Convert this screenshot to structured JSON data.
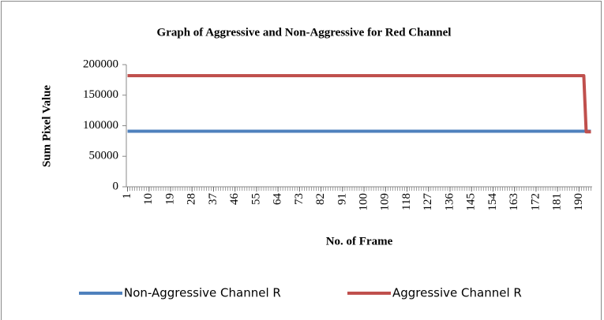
{
  "chart_data": {
    "type": "line",
    "title": "Graph of Aggressive and Non-Aggressive for Red Channel",
    "x_label": "No. of Frame",
    "y_label": "Sum Pixel Value",
    "x": [
      1,
      2,
      3,
      4,
      5,
      6,
      7,
      8,
      9,
      10,
      11,
      12,
      13,
      14,
      15,
      16,
      17,
      18,
      19,
      20,
      21,
      22,
      23,
      24,
      25,
      26,
      27,
      28,
      29,
      30,
      31,
      32,
      33,
      34,
      35,
      36,
      37,
      38,
      39,
      40,
      41,
      42,
      43,
      44,
      45,
      46,
      47,
      48,
      49,
      50,
      51,
      52,
      53,
      54,
      55,
      56,
      57,
      58,
      59,
      60,
      61,
      62,
      63,
      64,
      65,
      66,
      67,
      68,
      69,
      70,
      71,
      72,
      73,
      74,
      75,
      76,
      77,
      78,
      79,
      80,
      81,
      82,
      83,
      84,
      85,
      86,
      87,
      88,
      89,
      90,
      91,
      92,
      93,
      94,
      95,
      96,
      97,
      98,
      99,
      100,
      101,
      102,
      103,
      104,
      105,
      106,
      107,
      108,
      109,
      110,
      111,
      112,
      113,
      114,
      115,
      116,
      117,
      118,
      119,
      120,
      121,
      122,
      123,
      124,
      125,
      126,
      127,
      128,
      129,
      130,
      131,
      132,
      133,
      134,
      135,
      136,
      137,
      138,
      139,
      140,
      141,
      142,
      143,
      144,
      145,
      146,
      147,
      148,
      149,
      150,
      151,
      152,
      153,
      154,
      155,
      156,
      157,
      158,
      159,
      160,
      161,
      162,
      163,
      164,
      165,
      166,
      167,
      168,
      169,
      170,
      171,
      172,
      173,
      174,
      175,
      176,
      177,
      178,
      179,
      180,
      181,
      182,
      183,
      184,
      185,
      186,
      187,
      188,
      189,
      190,
      191,
      192,
      193,
      194,
      195
    ],
    "xlim": [
      0.5,
      195.5
    ],
    "xticks": [
      1,
      10,
      19,
      28,
      37,
      46,
      55,
      64,
      73,
      82,
      91,
      100,
      109,
      118,
      127,
      136,
      145,
      154,
      163,
      172,
      181,
      190
    ],
    "ylim": [
      0,
      200000
    ],
    "yticks": [
      0,
      50000,
      100000,
      150000,
      200000
    ],
    "legend": "bottom",
    "series": [
      {
        "name": "Non-Aggressive Channel R",
        "color": "#4f81bd",
        "values": [
          91000,
          91000,
          91000,
          91000,
          91000,
          91000,
          91000,
          91000,
          91000,
          91000,
          91000,
          91000,
          91000,
          91000,
          91000,
          91000,
          91000,
          91000,
          91000,
          91000,
          91000,
          91000,
          91000,
          91000,
          91000,
          91000,
          91000,
          91000,
          91000,
          91000,
          91000,
          91000,
          91000,
          91000,
          91000,
          91000,
          91000,
          91000,
          91000,
          91000,
          91000,
          91000,
          91000,
          91000,
          91000,
          91000,
          91000,
          91000,
          91000,
          91000,
          91000,
          91000,
          91000,
          91000,
          91000,
          91000,
          91000,
          91000,
          91000,
          91000,
          91000,
          91000,
          91000,
          91000,
          91000,
          91000,
          91000,
          91000,
          91000,
          91000,
          91000,
          91000,
          91000,
          91000,
          91000,
          91000,
          91000,
          91000,
          91000,
          91000,
          91000,
          91000,
          91000,
          91000,
          91000,
          91000,
          91000,
          91000,
          91000,
          91000,
          91000,
          91000,
          91000,
          91000,
          91000,
          91000,
          91000,
          91000,
          91000,
          91000,
          91000,
          91000,
          91000,
          91000,
          91000,
          91000,
          91000,
          91000,
          91000,
          91000,
          91000,
          91000,
          91000,
          91000,
          91000,
          91000,
          91000,
          91000,
          91000,
          91000,
          91000,
          91000,
          91000,
          91000,
          91000,
          91000,
          91000,
          91000,
          91000,
          91000,
          91000,
          91000,
          91000,
          91000,
          91000,
          91000,
          91000,
          91000,
          91000,
          91000,
          91000,
          91000,
          91000,
          91000,
          91000,
          91000,
          91000,
          91000,
          91000,
          91000,
          91000,
          91000,
          91000,
          91000,
          91000,
          91000,
          91000,
          91000,
          91000,
          91000,
          91000,
          91000,
          91000,
          91000,
          91000,
          91000,
          91000,
          91000,
          91000,
          91000,
          91000,
          91000,
          91000,
          91000,
          91000,
          91000,
          91000,
          91000,
          91000,
          91000,
          91000,
          91000,
          91000,
          91000,
          91000,
          91000,
          91000,
          91000,
          91000,
          91000,
          91000,
          91000,
          91000,
          91000,
          91000
        ]
      },
      {
        "name": "Aggressive Channel R",
        "color": "#c0504d",
        "values": [
          182000,
          182000,
          182000,
          182000,
          182000,
          182000,
          182000,
          182000,
          182000,
          182000,
          182000,
          182000,
          182000,
          182000,
          182000,
          182000,
          182000,
          182000,
          182000,
          182000,
          182000,
          182000,
          182000,
          182000,
          182000,
          182000,
          182000,
          182000,
          182000,
          182000,
          182000,
          182000,
          182000,
          182000,
          182000,
          182000,
          182000,
          182000,
          182000,
          182000,
          182000,
          182000,
          182000,
          182000,
          182000,
          182000,
          182000,
          182000,
          182000,
          182000,
          182000,
          182000,
          182000,
          182000,
          182000,
          182000,
          182000,
          182000,
          182000,
          182000,
          182000,
          182000,
          182000,
          182000,
          182000,
          182000,
          182000,
          182000,
          182000,
          182000,
          182000,
          182000,
          182000,
          182000,
          182000,
          182000,
          182000,
          182000,
          182000,
          182000,
          182000,
          182000,
          182000,
          182000,
          182000,
          182000,
          182000,
          182000,
          182000,
          182000,
          182000,
          182000,
          182000,
          182000,
          182000,
          182000,
          182000,
          182000,
          182000,
          182000,
          182000,
          182000,
          182000,
          182000,
          182000,
          182000,
          182000,
          182000,
          182000,
          182000,
          182000,
          182000,
          182000,
          182000,
          182000,
          182000,
          182000,
          182000,
          182000,
          182000,
          182000,
          182000,
          182000,
          182000,
          182000,
          182000,
          182000,
          182000,
          182000,
          182000,
          182000,
          182000,
          182000,
          182000,
          182000,
          182000,
          182000,
          182000,
          182000,
          182000,
          182000,
          182000,
          182000,
          182000,
          182000,
          182000,
          182000,
          182000,
          182000,
          182000,
          182000,
          182000,
          182000,
          182000,
          182000,
          182000,
          182000,
          182000,
          182000,
          182000,
          182000,
          182000,
          182000,
          182000,
          182000,
          182000,
          182000,
          182000,
          182000,
          182000,
          182000,
          182000,
          182000,
          182000,
          182000,
          182000,
          182000,
          182000,
          182000,
          182000,
          182000,
          182000,
          182000,
          182000,
          182000,
          182000,
          182000,
          182000,
          182000,
          182000,
          182000,
          182000,
          90000,
          90000,
          90000
        ]
      }
    ]
  }
}
